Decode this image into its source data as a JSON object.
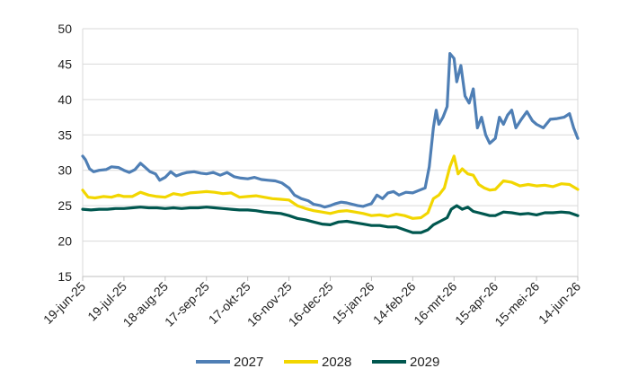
{
  "chart_data": {
    "type": "line",
    "x_type": "date",
    "ylim": [
      15,
      50
    ],
    "y_ticks": [
      15,
      20,
      25,
      30,
      35,
      40,
      45,
      50
    ],
    "x_ticks": [
      "19-jun-25",
      "19-jul-25",
      "18-aug-25",
      "17-sep-25",
      "17-okt-25",
      "16-nov-25",
      "16-dec-25",
      "15-jan-26",
      "14-feb-26",
      "16-mrt-26",
      "15-apr-26",
      "15-mei-26",
      "14-jun-26"
    ],
    "grid": "horizontal",
    "legend_position": "bottom",
    "series": [
      {
        "name": "2027",
        "color": "#4f7fb5",
        "points": [
          [
            "19-jun-25",
            32.0
          ],
          [
            "21-jun-25",
            31.5
          ],
          [
            "24-jun-25",
            30.2
          ],
          [
            "27-jun-25",
            29.8
          ],
          [
            "1-jul-25",
            30.0
          ],
          [
            "6-jul-25",
            30.1
          ],
          [
            "10-jul-25",
            30.5
          ],
          [
            "15-jul-25",
            30.4
          ],
          [
            "19-jul-25",
            30.0
          ],
          [
            "23-jul-25",
            29.7
          ],
          [
            "27-jul-25",
            30.1
          ],
          [
            "31-jul-25",
            31.0
          ],
          [
            "3-aug-25",
            30.5
          ],
          [
            "7-aug-25",
            29.8
          ],
          [
            "11-aug-25",
            29.5
          ],
          [
            "14-aug-25",
            28.6
          ],
          [
            "18-aug-25",
            29.0
          ],
          [
            "22-aug-25",
            29.8
          ],
          [
            "26-aug-25",
            29.2
          ],
          [
            "30-aug-25",
            29.5
          ],
          [
            "3-sep-25",
            29.7
          ],
          [
            "8-sep-25",
            29.8
          ],
          [
            "13-sep-25",
            29.6
          ],
          [
            "17-sep-25",
            29.5
          ],
          [
            "22-sep-25",
            29.7
          ],
          [
            "27-sep-25",
            29.3
          ],
          [
            "2-okt-25",
            29.7
          ],
          [
            "7-okt-25",
            29.1
          ],
          [
            "12-okt-25",
            28.9
          ],
          [
            "17-okt-25",
            28.8
          ],
          [
            "22-okt-25",
            29.0
          ],
          [
            "27-okt-25",
            28.7
          ],
          [
            "1-nov-25",
            28.6
          ],
          [
            "6-nov-25",
            28.5
          ],
          [
            "11-nov-25",
            28.2
          ],
          [
            "16-nov-25",
            27.5
          ],
          [
            "20-nov-25",
            26.5
          ],
          [
            "25-nov-25",
            26.0
          ],
          [
            "30-nov-25",
            25.7
          ],
          [
            "4-dec-25",
            25.2
          ],
          [
            "9-dec-25",
            25.0
          ],
          [
            "12-dec-25",
            24.8
          ],
          [
            "16-dec-25",
            25.0
          ],
          [
            "20-dec-25",
            25.3
          ],
          [
            "24-dec-25",
            25.5
          ],
          [
            "28-dec-25",
            25.4
          ],
          [
            "1-jan-26",
            25.2
          ],
          [
            "5-jan-26",
            25.0
          ],
          [
            "9-jan-26",
            24.9
          ],
          [
            "15-jan-26",
            25.3
          ],
          [
            "19-jan-26",
            26.5
          ],
          [
            "23-jan-26",
            26.0
          ],
          [
            "27-jan-26",
            26.8
          ],
          [
            "31-jan-26",
            27.0
          ],
          [
            "4-feb-26",
            26.5
          ],
          [
            "9-feb-26",
            26.9
          ],
          [
            "14-feb-26",
            26.8
          ],
          [
            "19-feb-26",
            27.2
          ],
          [
            "23-feb-26",
            27.5
          ],
          [
            "26-feb-26",
            30.5
          ],
          [
            "1-mrt-26",
            36.0
          ],
          [
            "3-mrt-26",
            38.5
          ],
          [
            "5-mrt-26",
            36.5
          ],
          [
            "8-mrt-26",
            37.5
          ],
          [
            "11-mrt-26",
            39.0
          ],
          [
            "13-mrt-26",
            46.5
          ],
          [
            "16-mrt-26",
            45.8
          ],
          [
            "18-mrt-26",
            42.5
          ],
          [
            "21-mrt-26",
            44.8
          ],
          [
            "24-mrt-26",
            40.5
          ],
          [
            "27-mrt-26",
            39.5
          ],
          [
            "30-mrt-26",
            41.5
          ],
          [
            "2-apr-26",
            36.0
          ],
          [
            "5-apr-26",
            37.5
          ],
          [
            "8-apr-26",
            35.0
          ],
          [
            "11-apr-26",
            33.8
          ],
          [
            "15-apr-26",
            34.5
          ],
          [
            "18-apr-26",
            37.5
          ],
          [
            "21-apr-26",
            36.5
          ],
          [
            "24-apr-26",
            37.8
          ],
          [
            "27-apr-26",
            38.5
          ],
          [
            "30-apr-26",
            36.0
          ],
          [
            "4-mei-26",
            37.2
          ],
          [
            "8-mei-26",
            38.3
          ],
          [
            "12-mei-26",
            37.0
          ],
          [
            "15-mei-26",
            36.5
          ],
          [
            "20-mei-26",
            36.0
          ],
          [
            "25-mei-26",
            37.2
          ],
          [
            "30-mei-26",
            37.3
          ],
          [
            "4-jun-26",
            37.5
          ],
          [
            "8-jun-26",
            38.0
          ],
          [
            "11-jun-26",
            36.0
          ],
          [
            "14-jun-26",
            34.5
          ]
        ]
      },
      {
        "name": "2028",
        "color": "#f2d600",
        "points": [
          [
            "19-jun-25",
            27.2
          ],
          [
            "23-jun-25",
            26.2
          ],
          [
            "28-jun-25",
            26.1
          ],
          [
            "4-jul-25",
            26.3
          ],
          [
            "10-jul-25",
            26.2
          ],
          [
            "15-jul-25",
            26.5
          ],
          [
            "19-jul-25",
            26.3
          ],
          [
            "25-jul-25",
            26.3
          ],
          [
            "31-jul-25",
            26.9
          ],
          [
            "6-aug-25",
            26.5
          ],
          [
            "12-aug-25",
            26.3
          ],
          [
            "18-aug-25",
            26.2
          ],
          [
            "24-aug-25",
            26.7
          ],
          [
            "30-aug-25",
            26.5
          ],
          [
            "5-sep-25",
            26.8
          ],
          [
            "11-sep-25",
            26.9
          ],
          [
            "17-sep-25",
            27.0
          ],
          [
            "23-sep-25",
            26.9
          ],
          [
            "29-sep-25",
            26.7
          ],
          [
            "5-okt-25",
            26.8
          ],
          [
            "11-okt-25",
            26.2
          ],
          [
            "17-okt-25",
            26.3
          ],
          [
            "23-okt-25",
            26.4
          ],
          [
            "29-okt-25",
            26.2
          ],
          [
            "4-nov-25",
            26.0
          ],
          [
            "10-nov-25",
            25.9
          ],
          [
            "16-nov-25",
            25.8
          ],
          [
            "22-nov-25",
            25.0
          ],
          [
            "28-nov-25",
            24.6
          ],
          [
            "4-dec-25",
            24.3
          ],
          [
            "10-dec-25",
            24.1
          ],
          [
            "16-dec-25",
            23.9
          ],
          [
            "22-dec-25",
            24.2
          ],
          [
            "28-dec-25",
            24.3
          ],
          [
            "3-jan-26",
            24.1
          ],
          [
            "9-jan-26",
            23.9
          ],
          [
            "15-jan-26",
            23.6
          ],
          [
            "21-jan-26",
            23.7
          ],
          [
            "27-jan-26",
            23.5
          ],
          [
            "2-feb-26",
            23.8
          ],
          [
            "8-feb-26",
            23.6
          ],
          [
            "14-feb-26",
            23.2
          ],
          [
            "20-feb-26",
            23.3
          ],
          [
            "25-feb-26",
            24.0
          ],
          [
            "1-mrt-26",
            26.0
          ],
          [
            "5-mrt-26",
            26.5
          ],
          [
            "9-mrt-26",
            27.5
          ],
          [
            "13-mrt-26",
            30.5
          ],
          [
            "16-mrt-26",
            32.0
          ],
          [
            "19-mrt-26",
            29.5
          ],
          [
            "22-mrt-26",
            30.2
          ],
          [
            "26-mrt-26",
            29.5
          ],
          [
            "30-mrt-26",
            29.3
          ],
          [
            "3-apr-26",
            28.0
          ],
          [
            "7-apr-26",
            27.5
          ],
          [
            "11-apr-26",
            27.2
          ],
          [
            "15-apr-26",
            27.3
          ],
          [
            "21-apr-26",
            28.5
          ],
          [
            "27-apr-26",
            28.3
          ],
          [
            "3-mei-26",
            27.8
          ],
          [
            "9-mei-26",
            28.0
          ],
          [
            "15-mei-26",
            27.8
          ],
          [
            "21-mei-26",
            27.9
          ],
          [
            "27-mei-26",
            27.7
          ],
          [
            "2-jun-26",
            28.1
          ],
          [
            "8-jun-26",
            28.0
          ],
          [
            "14-jun-26",
            27.3
          ]
        ]
      },
      {
        "name": "2029",
        "color": "#00574f",
        "points": [
          [
            "19-jun-25",
            24.5
          ],
          [
            "25-jun-25",
            24.4
          ],
          [
            "1-jul-25",
            24.5
          ],
          [
            "7-jul-25",
            24.5
          ],
          [
            "13-jul-25",
            24.6
          ],
          [
            "19-jul-25",
            24.6
          ],
          [
            "25-jul-25",
            24.7
          ],
          [
            "31-jul-25",
            24.8
          ],
          [
            "6-aug-25",
            24.7
          ],
          [
            "12-aug-25",
            24.7
          ],
          [
            "18-aug-25",
            24.6
          ],
          [
            "24-aug-25",
            24.7
          ],
          [
            "30-aug-25",
            24.6
          ],
          [
            "5-sep-25",
            24.7
          ],
          [
            "11-sep-25",
            24.7
          ],
          [
            "17-sep-25",
            24.8
          ],
          [
            "23-sep-25",
            24.7
          ],
          [
            "29-sep-25",
            24.6
          ],
          [
            "5-okt-25",
            24.5
          ],
          [
            "11-okt-25",
            24.4
          ],
          [
            "17-okt-25",
            24.4
          ],
          [
            "23-okt-25",
            24.3
          ],
          [
            "29-okt-25",
            24.1
          ],
          [
            "4-nov-25",
            24.0
          ],
          [
            "10-nov-25",
            23.9
          ],
          [
            "16-nov-25",
            23.6
          ],
          [
            "22-nov-25",
            23.2
          ],
          [
            "28-nov-25",
            23.0
          ],
          [
            "4-dec-25",
            22.7
          ],
          [
            "10-dec-25",
            22.4
          ],
          [
            "16-dec-25",
            22.3
          ],
          [
            "22-dec-25",
            22.7
          ],
          [
            "28-dec-25",
            22.8
          ],
          [
            "3-jan-26",
            22.6
          ],
          [
            "9-jan-26",
            22.4
          ],
          [
            "15-jan-26",
            22.2
          ],
          [
            "21-jan-26",
            22.2
          ],
          [
            "27-jan-26",
            22.0
          ],
          [
            "2-feb-26",
            22.0
          ],
          [
            "8-feb-26",
            21.6
          ],
          [
            "14-feb-26",
            21.2
          ],
          [
            "20-feb-26",
            21.2
          ],
          [
            "25-feb-26",
            21.6
          ],
          [
            "1-mrt-26",
            22.3
          ],
          [
            "6-mrt-26",
            22.8
          ],
          [
            "11-mrt-26",
            23.3
          ],
          [
            "14-mrt-26",
            24.5
          ],
          [
            "18-mrt-26",
            25.0
          ],
          [
            "22-mrt-26",
            24.5
          ],
          [
            "26-mrt-26",
            24.8
          ],
          [
            "30-mrt-26",
            24.2
          ],
          [
            "3-apr-26",
            24.0
          ],
          [
            "7-apr-26",
            23.8
          ],
          [
            "11-apr-26",
            23.6
          ],
          [
            "15-apr-26",
            23.6
          ],
          [
            "21-apr-26",
            24.1
          ],
          [
            "27-apr-26",
            24.0
          ],
          [
            "3-mei-26",
            23.8
          ],
          [
            "9-mei-26",
            23.9
          ],
          [
            "15-mei-26",
            23.7
          ],
          [
            "21-mei-26",
            24.0
          ],
          [
            "27-mei-26",
            24.0
          ],
          [
            "2-jun-26",
            24.1
          ],
          [
            "8-jun-26",
            24.0
          ],
          [
            "14-jun-26",
            23.6
          ]
        ]
      }
    ]
  }
}
